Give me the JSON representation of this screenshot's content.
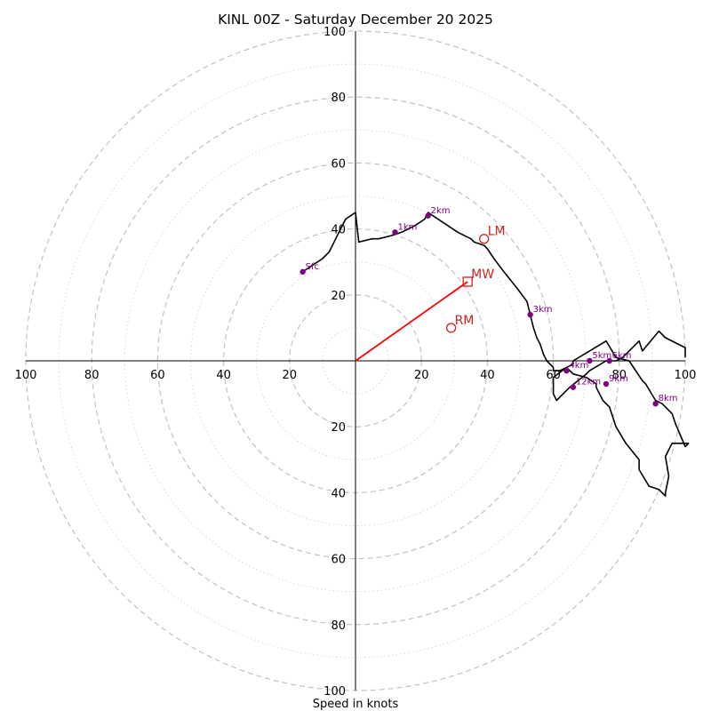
{
  "chart_data": {
    "type": "scatter",
    "title": "KINL 00Z - Saturday December 20 2025",
    "xlabel": "Speed in knots",
    "ylabel": "",
    "xlim": [
      -100,
      100
    ],
    "ylim": [
      -100,
      100
    ],
    "ring_major": [
      20,
      40,
      60,
      80,
      100
    ],
    "ring_minor": [
      10,
      30,
      50,
      70,
      90
    ],
    "tick_values": [
      20,
      40,
      60,
      80,
      100
    ],
    "x_ticks": [
      "100",
      "80",
      "60",
      "40",
      "20",
      "20",
      "40",
      "60",
      "80",
      "100"
    ],
    "y_ticks": [
      "100",
      "80",
      "60",
      "40",
      "20",
      "20",
      "40",
      "60",
      "80",
      "100"
    ],
    "hodograph": {
      "u": [
        -16,
        -10,
        -8,
        -5,
        -3,
        0,
        1,
        5,
        6,
        7,
        11,
        14,
        16,
        18,
        21,
        22,
        25,
        28,
        31,
        35,
        36,
        39,
        40,
        42,
        45,
        49,
        52,
        53,
        54,
        55,
        56,
        57,
        58,
        60,
        60,
        62,
        66,
        66,
        71,
        76,
        79,
        83,
        87,
        88,
        91,
        93,
        96,
        97,
        100,
        101,
        96,
        94,
        95,
        94,
        94,
        92,
        89,
        86,
        86,
        82,
        79,
        77,
        75,
        73,
        73,
        70,
        66,
        64,
        60,
        60,
        61,
        65,
        70,
        71,
        76,
        79,
        81,
        86,
        87,
        92,
        94,
        100,
        100
      ],
      "v": [
        27,
        31,
        33,
        39,
        43,
        45,
        36,
        37,
        37,
        37,
        38,
        39,
        40,
        41,
        43,
        45,
        43,
        41,
        39,
        37,
        36,
        35,
        34,
        31,
        27,
        22,
        18,
        14,
        10,
        7,
        5,
        2,
        0,
        -2,
        -3,
        -3,
        -1,
        0,
        3,
        6,
        1,
        0,
        -6,
        -7,
        -12,
        -13,
        -16,
        -19,
        -26,
        -25,
        -25,
        -29,
        -35,
        -40,
        -41,
        -39,
        -38,
        -33,
        -30,
        -25,
        -20,
        -14,
        -12,
        -8,
        -7,
        -5,
        -4,
        -2,
        -5,
        -10,
        -12,
        -8,
        -4,
        -3,
        0,
        0,
        1,
        6,
        3,
        9,
        7,
        4,
        1
      ],
      "start_index": 0
    },
    "height_markers": [
      {
        "label": "Sfc",
        "u": -16,
        "v": 27
      },
      {
        "label": "1km",
        "u": 12,
        "v": 39
      },
      {
        "label": "2km",
        "u": 22,
        "v": 44
      },
      {
        "label": "3km",
        "u": 53,
        "v": 14
      },
      {
        "label": "4km",
        "u": 64,
        "v": -3
      },
      {
        "label": "5km",
        "u": 71,
        "v": 0
      },
      {
        "label": "6km",
        "u": 77,
        "v": 0
      },
      {
        "label": "9km",
        "u": 76,
        "v": -7
      },
      {
        "label": "12km",
        "u": 66,
        "v": -8
      },
      {
        "label": "8km",
        "u": 91,
        "v": -13
      }
    ],
    "storm_motions": [
      {
        "label": "RM",
        "u": 29,
        "v": 10,
        "marker": "circle"
      },
      {
        "label": "LM",
        "u": 39,
        "v": 37,
        "marker": "circle"
      },
      {
        "label": "MW",
        "u": 34,
        "v": 24,
        "marker": "square"
      }
    ],
    "mean_wind_vector": {
      "u": 34,
      "v": 24
    },
    "colors": {
      "hodograph": "#000000",
      "height_marker": "#800080",
      "storm_motion": "#cc2222",
      "mean_wind_vector": "#ff0000",
      "ring": "#bdbdbd"
    }
  }
}
